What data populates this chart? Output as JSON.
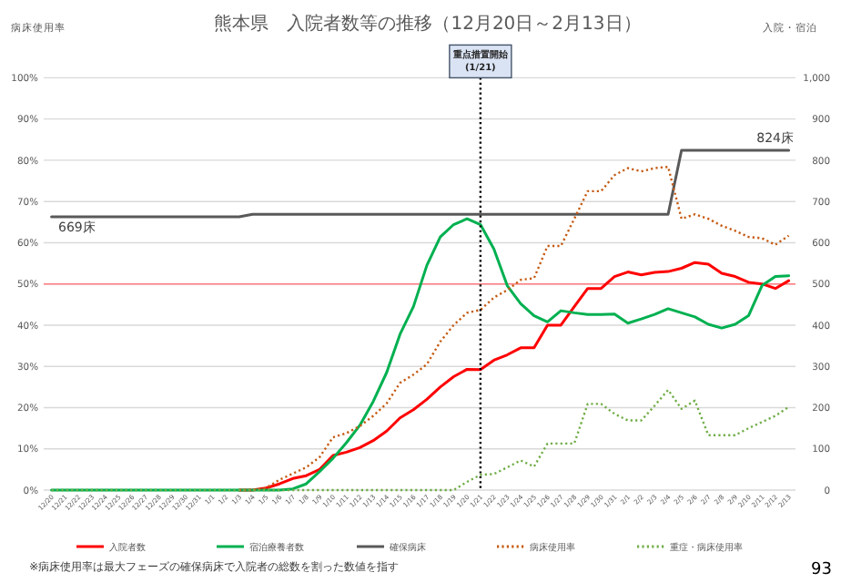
{
  "chart_data": {
    "type": "line",
    "title": "熊本県　入院者数等の推移（12月20日～2月13日）",
    "ylabel": "病床使用率",
    "y2label": "入院・宿泊",
    "categories": [
      "12/20",
      "12/21",
      "12/22",
      "12/23",
      "12/24",
      "12/25",
      "12/26",
      "12/27",
      "12/28",
      "12/29",
      "12/30",
      "12/31",
      "1/1",
      "1/2",
      "1/3",
      "1/4",
      "1/5",
      "1/6",
      "1/7",
      "1/8",
      "1/9",
      "1/10",
      "1/11",
      "1/12",
      "1/13",
      "1/14",
      "1/15",
      "1/16",
      "1/17",
      "1/18",
      "1/19",
      "1/20",
      "1/21",
      "1/22",
      "1/23",
      "1/24",
      "1/25",
      "1/26",
      "1/27",
      "1/28",
      "1/29",
      "1/30",
      "1/31",
      "2/1",
      "2/2",
      "2/3",
      "2/4",
      "2/5",
      "2/6",
      "2/7",
      "2/8",
      "2/9",
      "2/10",
      "2/11",
      "2/12",
      "2/13"
    ],
    "series": [
      {
        "name": "入院者数",
        "color": "#ff0000",
        "axis": "y2",
        "line_style": "solid",
        "values": [
          null,
          null,
          null,
          null,
          null,
          null,
          null,
          null,
          null,
          null,
          null,
          null,
          null,
          null,
          0,
          0,
          5,
          15,
          28,
          35,
          50,
          84,
          92,
          103,
          120,
          143,
          175,
          195,
          220,
          250,
          275,
          293,
          292,
          315,
          328,
          345,
          345,
          400,
          400,
          445,
          489,
          489,
          518,
          529,
          522,
          528,
          530,
          538,
          552,
          548,
          526,
          518,
          504,
          500,
          489,
          508
        ]
      },
      {
        "name": "宿泊療養者数",
        "color": "#00b050",
        "axis": "y2",
        "line_style": "solid",
        "values": [
          0,
          0,
          0,
          0,
          0,
          0,
          0,
          0,
          0,
          0,
          0,
          0,
          0,
          0,
          0,
          0,
          0,
          0,
          3,
          15,
          45,
          77,
          115,
          157,
          215,
          285,
          378,
          445,
          545,
          614,
          644,
          658,
          644,
          585,
          496,
          452,
          423,
          408,
          435,
          430,
          426,
          426,
          427,
          405,
          415,
          426,
          440,
          430,
          420,
          402,
          393,
          402,
          423,
          496,
          518,
          520
        ]
      },
      {
        "name": "確保病床",
        "color": "#595959",
        "axis": "y2",
        "line_style": "solid",
        "values": [
          663,
          663,
          663,
          663,
          663,
          663,
          663,
          663,
          663,
          663,
          663,
          663,
          663,
          663,
          663,
          669,
          669,
          669,
          669,
          669,
          669,
          669,
          669,
          669,
          669,
          669,
          669,
          669,
          669,
          669,
          669,
          669,
          669,
          669,
          669,
          669,
          669,
          669,
          669,
          669,
          669,
          669,
          669,
          669,
          669,
          669,
          669,
          824,
          824,
          824,
          824,
          824,
          824,
          824,
          824,
          824
        ]
      },
      {
        "name": "病床使用率",
        "color": "#c55a11",
        "axis": "y",
        "line_style": "dotted",
        "values": [
          null,
          null,
          null,
          null,
          null,
          null,
          null,
          null,
          null,
          null,
          null,
          null,
          null,
          null,
          0,
          0,
          0.5,
          2.5,
          4,
          5.5,
          8,
          12.8,
          13.8,
          15.5,
          18,
          21,
          26,
          28,
          30.5,
          36,
          40,
          43,
          43.7,
          46.7,
          48.5,
          51,
          51.4,
          59.2,
          59.2,
          65.8,
          72.5,
          72.5,
          76.4,
          78.1,
          77.3,
          78.1,
          78.4,
          65.8,
          66.9,
          65.8,
          64.1,
          62.9,
          61.4,
          61.1,
          59.5,
          61.7
        ]
      },
      {
        "name": "重症・病床使用率",
        "color": "#70ad47",
        "axis": "y",
        "line_style": "dotted",
        "values": [
          0,
          0,
          0,
          0,
          0,
          0,
          0,
          0,
          0,
          0,
          0,
          0,
          0,
          0,
          0,
          0,
          0,
          0,
          0,
          0,
          0,
          0,
          0,
          0,
          0,
          0,
          0,
          0,
          0,
          0,
          0,
          2,
          3.7,
          3.9,
          5.5,
          7.2,
          5.7,
          11.3,
          11.3,
          11.3,
          20.9,
          20.9,
          18.5,
          16.9,
          16.9,
          20.5,
          24.3,
          19.7,
          21.7,
          13.3,
          13.3,
          13.3,
          15,
          16.5,
          18,
          20.2
        ]
      }
    ],
    "ylim": [
      0,
      100
    ],
    "yticks": [
      {
        "value": 0,
        "label": "0%"
      },
      {
        "value": 10,
        "label": "10%"
      },
      {
        "value": 20,
        "label": "20%"
      },
      {
        "value": 30,
        "label": "30%"
      },
      {
        "value": 40,
        "label": "40%"
      },
      {
        "value": 50,
        "label": "50%"
      },
      {
        "value": 60,
        "label": "60%"
      },
      {
        "value": 70,
        "label": "70%"
      },
      {
        "value": 80,
        "label": "80%"
      },
      {
        "value": 90,
        "label": "90%"
      },
      {
        "value": 100,
        "label": "100%"
      }
    ],
    "y2lim": [
      0,
      1000
    ],
    "y2ticks": [
      0,
      100,
      200,
      300,
      400,
      500,
      600,
      700,
      800,
      900,
      {
        "value": 1000,
        "label": "1,000"
      }
    ],
    "grid": "y",
    "legend": "bottom",
    "marker": "none",
    "ref_lines": [
      {
        "axis": "y",
        "value": 50,
        "color": "#ff7c80"
      },
      {
        "axis": "x",
        "value": "1/21",
        "label": "重点措置開始(1/21)",
        "color": "#000000",
        "line_style": "dotted"
      }
    ],
    "annotations": [
      "669床",
      "824床",
      "※病床使用率は最大フェーズの確保病床で入院者の総数を割った数値を指す",
      "93"
    ]
  }
}
